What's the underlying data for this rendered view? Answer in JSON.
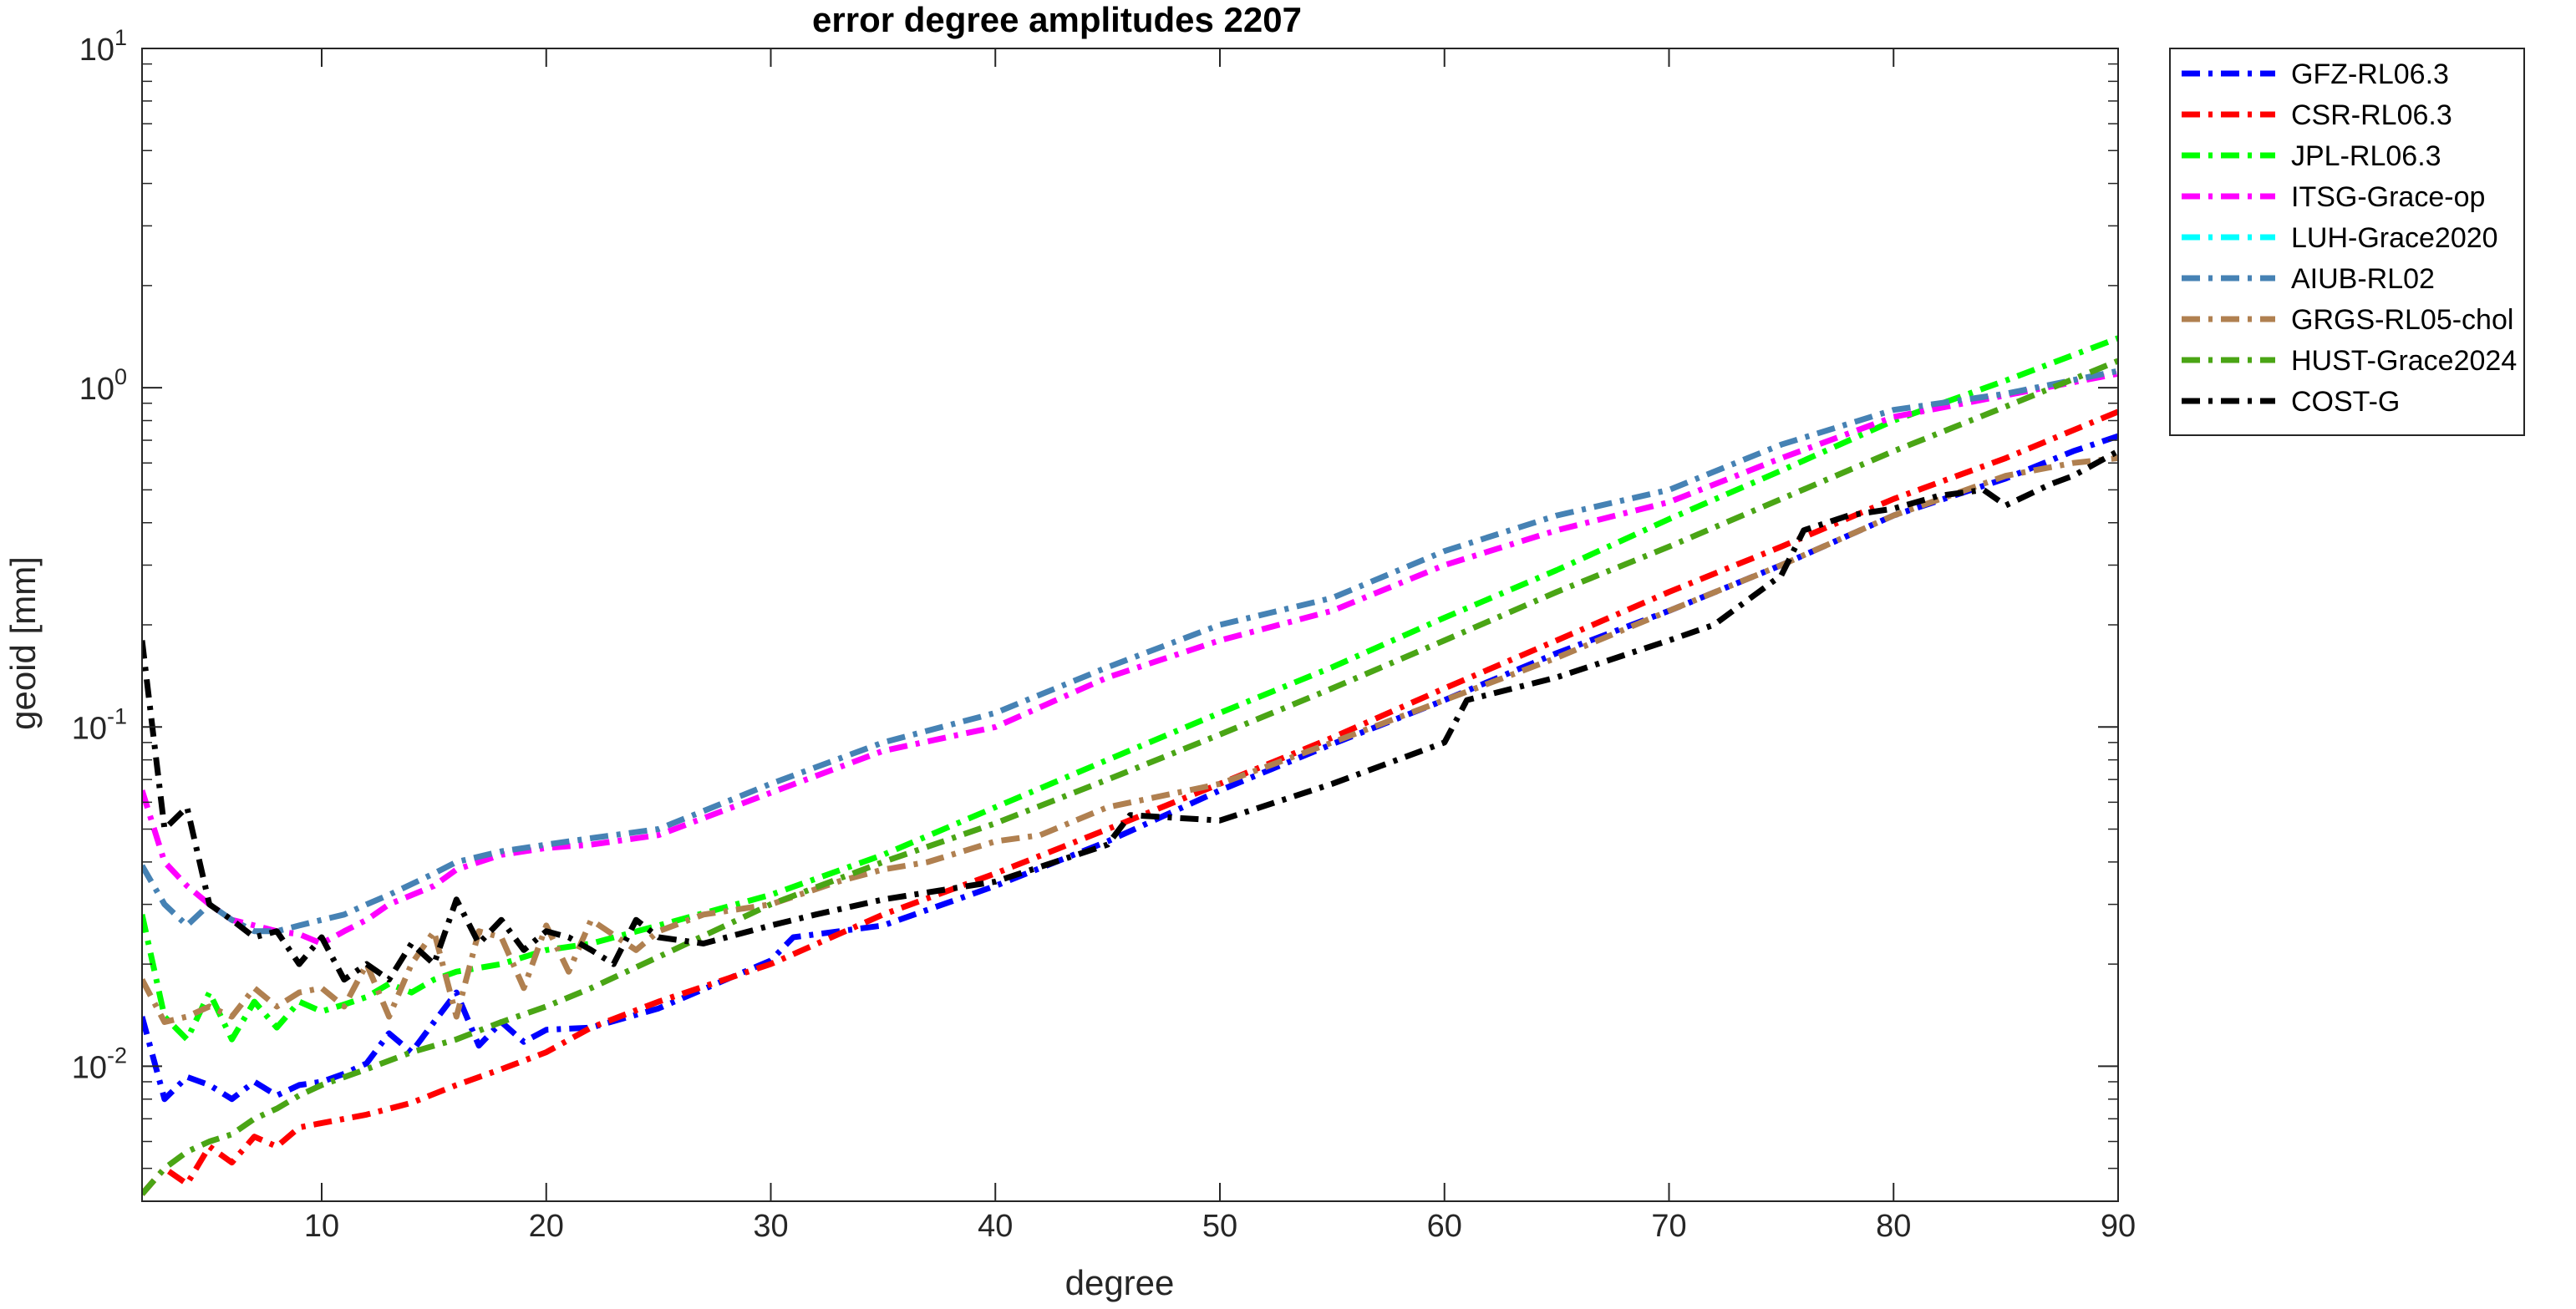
{
  "chart_data": {
    "type": "line",
    "title": "error degree amplitudes 2207",
    "xlabel": "degree",
    "ylabel": "geoid [mm]",
    "xlim": [
      2,
      90
    ],
    "ylim": [
      0.004,
      10
    ],
    "yscale": "log",
    "grid": false,
    "legend_position": "outside-top-right",
    "x_ticks": [
      10,
      20,
      30,
      40,
      50,
      60,
      70,
      80,
      90
    ],
    "y_ticks": [
      {
        "value": 10,
        "base": "10",
        "exp": "1"
      },
      {
        "value": 1,
        "base": "10",
        "exp": "0"
      },
      {
        "value": 0.1,
        "base": "10",
        "exp": "-1"
      },
      {
        "value": 0.01,
        "base": "10",
        "exp": "-2"
      }
    ],
    "series": [
      {
        "name": "GFZ-RL06.3",
        "color": "#0000ff",
        "dash": "dashdot",
        "points": [
          [
            2,
            0.014
          ],
          [
            3,
            0.008
          ],
          [
            4,
            0.0093
          ],
          [
            5,
            0.0088
          ],
          [
            6,
            0.008
          ],
          [
            7,
            0.009
          ],
          [
            8,
            0.0082
          ],
          [
            9,
            0.0088
          ],
          [
            10,
            0.009
          ],
          [
            11,
            0.0095
          ],
          [
            12,
            0.0102
          ],
          [
            13,
            0.0125
          ],
          [
            14,
            0.011
          ],
          [
            15,
            0.0135
          ],
          [
            16,
            0.0165
          ],
          [
            17,
            0.0115
          ],
          [
            18,
            0.0135
          ],
          [
            19,
            0.0118
          ],
          [
            20,
            0.0128
          ],
          [
            22,
            0.013
          ],
          [
            25,
            0.0148
          ],
          [
            30,
            0.0205
          ],
          [
            31,
            0.024
          ],
          [
            35,
            0.026
          ],
          [
            40,
            0.034
          ],
          [
            45,
            0.046
          ],
          [
            50,
            0.065
          ],
          [
            55,
            0.089
          ],
          [
            60,
            0.12
          ],
          [
            65,
            0.165
          ],
          [
            70,
            0.22
          ],
          [
            75,
            0.3
          ],
          [
            80,
            0.42
          ],
          [
            85,
            0.54
          ],
          [
            88,
            0.65
          ],
          [
            90,
            0.72
          ]
        ]
      },
      {
        "name": "CSR-RL06.3",
        "color": "#ff0000",
        "dash": "dashdot",
        "points": [
          [
            2,
            0.0042
          ],
          [
            3,
            0.005
          ],
          [
            4,
            0.0045
          ],
          [
            5,
            0.0058
          ],
          [
            6,
            0.0052
          ],
          [
            7,
            0.0062
          ],
          [
            8,
            0.0058
          ],
          [
            9,
            0.0066
          ],
          [
            10,
            0.0068
          ],
          [
            12,
            0.0072
          ],
          [
            14,
            0.0078
          ],
          [
            16,
            0.0088
          ],
          [
            18,
            0.0098
          ],
          [
            20,
            0.011
          ],
          [
            22,
            0.013
          ],
          [
            25,
            0.0155
          ],
          [
            30,
            0.02
          ],
          [
            35,
            0.028
          ],
          [
            40,
            0.037
          ],
          [
            45,
            0.05
          ],
          [
            50,
            0.068
          ],
          [
            55,
            0.093
          ],
          [
            60,
            0.13
          ],
          [
            65,
            0.18
          ],
          [
            70,
            0.25
          ],
          [
            75,
            0.34
          ],
          [
            80,
            0.47
          ],
          [
            85,
            0.62
          ],
          [
            90,
            0.85
          ]
        ]
      },
      {
        "name": "JPL-RL06.3",
        "color": "#00ff00",
        "dash": "dashdot",
        "points": [
          [
            2,
            0.028
          ],
          [
            3,
            0.014
          ],
          [
            4,
            0.012
          ],
          [
            5,
            0.0165
          ],
          [
            6,
            0.012
          ],
          [
            7,
            0.0155
          ],
          [
            8,
            0.013
          ],
          [
            9,
            0.0155
          ],
          [
            10,
            0.0145
          ],
          [
            11,
            0.0152
          ],
          [
            12,
            0.016
          ],
          [
            13,
            0.0175
          ],
          [
            14,
            0.0165
          ],
          [
            15,
            0.018
          ],
          [
            16,
            0.019
          ],
          [
            18,
            0.02
          ],
          [
            20,
            0.022
          ],
          [
            22,
            0.023
          ],
          [
            25,
            0.026
          ],
          [
            30,
            0.032
          ],
          [
            35,
            0.042
          ],
          [
            40,
            0.058
          ],
          [
            45,
            0.08
          ],
          [
            50,
            0.11
          ],
          [
            55,
            0.15
          ],
          [
            60,
            0.21
          ],
          [
            65,
            0.29
          ],
          [
            70,
            0.41
          ],
          [
            75,
            0.57
          ],
          [
            80,
            0.8
          ],
          [
            85,
            1.05
          ],
          [
            90,
            1.4
          ]
        ]
      },
      {
        "name": "ITSG-Grace-op",
        "color": "#ff00ff",
        "dash": "dashdot",
        "points": [
          [
            2,
            0.065
          ],
          [
            3,
            0.04
          ],
          [
            4,
            0.034
          ],
          [
            5,
            0.03
          ],
          [
            6,
            0.027
          ],
          [
            7,
            0.026
          ],
          [
            8,
            0.025
          ],
          [
            9,
            0.0245
          ],
          [
            10,
            0.023
          ],
          [
            11,
            0.025
          ],
          [
            12,
            0.027
          ],
          [
            13,
            0.03
          ],
          [
            15,
            0.034
          ],
          [
            16,
            0.038
          ],
          [
            18,
            0.042
          ],
          [
            20,
            0.044
          ],
          [
            22,
            0.045
          ],
          [
            25,
            0.048
          ],
          [
            30,
            0.064
          ],
          [
            35,
            0.085
          ],
          [
            40,
            0.1
          ],
          [
            45,
            0.14
          ],
          [
            50,
            0.18
          ],
          [
            55,
            0.22
          ],
          [
            60,
            0.3
          ],
          [
            65,
            0.38
          ],
          [
            70,
            0.46
          ],
          [
            75,
            0.62
          ],
          [
            80,
            0.82
          ],
          [
            85,
            0.95
          ],
          [
            90,
            1.1
          ]
        ]
      },
      {
        "name": "LUH-Grace2020",
        "color": "#00ffff",
        "dash": "dashdot",
        "points": []
      },
      {
        "name": "AIUB-RL02",
        "color": "#4682b4",
        "dash": "dashdot",
        "points": [
          [
            2,
            0.039
          ],
          [
            3,
            0.03
          ],
          [
            4,
            0.026
          ],
          [
            5,
            0.03
          ],
          [
            6,
            0.027
          ],
          [
            7,
            0.025
          ],
          [
            8,
            0.025
          ],
          [
            9,
            0.026
          ],
          [
            10,
            0.027
          ],
          [
            11,
            0.028
          ],
          [
            12,
            0.03
          ],
          [
            13,
            0.032
          ],
          [
            15,
            0.037
          ],
          [
            16,
            0.04
          ],
          [
            18,
            0.043
          ],
          [
            20,
            0.045
          ],
          [
            22,
            0.047
          ],
          [
            25,
            0.05
          ],
          [
            30,
            0.068
          ],
          [
            35,
            0.09
          ],
          [
            40,
            0.11
          ],
          [
            45,
            0.15
          ],
          [
            50,
            0.2
          ],
          [
            55,
            0.24
          ],
          [
            60,
            0.33
          ],
          [
            65,
            0.42
          ],
          [
            70,
            0.5
          ],
          [
            75,
            0.68
          ],
          [
            80,
            0.86
          ],
          [
            85,
            0.96
          ],
          [
            90,
            1.12
          ]
        ]
      },
      {
        "name": "GRGS-RL05-chol",
        "color": "#b08050",
        "dash": "dashdot",
        "points": [
          [
            2,
            0.018
          ],
          [
            3,
            0.0135
          ],
          [
            4,
            0.014
          ],
          [
            5,
            0.015
          ],
          [
            6,
            0.014
          ],
          [
            7,
            0.017
          ],
          [
            8,
            0.015
          ],
          [
            9,
            0.0165
          ],
          [
            10,
            0.017
          ],
          [
            11,
            0.015
          ],
          [
            12,
            0.02
          ],
          [
            13,
            0.014
          ],
          [
            14,
            0.02
          ],
          [
            15,
            0.025
          ],
          [
            16,
            0.014
          ],
          [
            17,
            0.025
          ],
          [
            18,
            0.024
          ],
          [
            19,
            0.017
          ],
          [
            20,
            0.026
          ],
          [
            21,
            0.019
          ],
          [
            22,
            0.027
          ],
          [
            24,
            0.022
          ],
          [
            25,
            0.025
          ],
          [
            27,
            0.028
          ],
          [
            30,
            0.03
          ],
          [
            33,
            0.035
          ],
          [
            35,
            0.038
          ],
          [
            37,
            0.04
          ],
          [
            40,
            0.046
          ],
          [
            42,
            0.048
          ],
          [
            45,
            0.058
          ],
          [
            50,
            0.068
          ],
          [
            55,
            0.09
          ],
          [
            60,
            0.12
          ],
          [
            65,
            0.16
          ],
          [
            70,
            0.22
          ],
          [
            75,
            0.3
          ],
          [
            80,
            0.42
          ],
          [
            85,
            0.55
          ],
          [
            88,
            0.6
          ],
          [
            90,
            0.62
          ]
        ]
      },
      {
        "name": "HUST-Grace2024",
        "color": "#4aa515",
        "dash": "dashdot",
        "points": [
          [
            2,
            0.0042
          ],
          [
            3,
            0.005
          ],
          [
            4,
            0.0056
          ],
          [
            5,
            0.006
          ],
          [
            6,
            0.0063
          ],
          [
            7,
            0.007
          ],
          [
            8,
            0.0075
          ],
          [
            9,
            0.0082
          ],
          [
            10,
            0.0088
          ],
          [
            12,
            0.0098
          ],
          [
            14,
            0.011
          ],
          [
            16,
            0.012
          ],
          [
            18,
            0.0135
          ],
          [
            20,
            0.015
          ],
          [
            22,
            0.017
          ],
          [
            25,
            0.021
          ],
          [
            30,
            0.03
          ],
          [
            35,
            0.04
          ],
          [
            40,
            0.052
          ],
          [
            45,
            0.07
          ],
          [
            50,
            0.095
          ],
          [
            55,
            0.13
          ],
          [
            60,
            0.18
          ],
          [
            65,
            0.25
          ],
          [
            70,
            0.34
          ],
          [
            75,
            0.47
          ],
          [
            80,
            0.65
          ],
          [
            85,
            0.88
          ],
          [
            90,
            1.2
          ]
        ]
      },
      {
        "name": "COST-G",
        "color": "#000000",
        "dash": "dashdot",
        "points": [
          [
            2,
            0.18
          ],
          [
            3,
            0.05
          ],
          [
            4,
            0.058
          ],
          [
            5,
            0.03
          ],
          [
            6,
            0.027
          ],
          [
            7,
            0.024
          ],
          [
            8,
            0.025
          ],
          [
            9,
            0.02
          ],
          [
            10,
            0.024
          ],
          [
            11,
            0.018
          ],
          [
            12,
            0.02
          ],
          [
            13,
            0.018
          ],
          [
            14,
            0.023
          ],
          [
            15,
            0.02
          ],
          [
            16,
            0.031
          ],
          [
            17,
            0.023
          ],
          [
            18,
            0.027
          ],
          [
            19,
            0.022
          ],
          [
            20,
            0.025
          ],
          [
            21,
            0.024
          ],
          [
            22,
            0.022
          ],
          [
            23,
            0.02
          ],
          [
            24,
            0.027
          ],
          [
            25,
            0.024
          ],
          [
            27,
            0.023
          ],
          [
            30,
            0.026
          ],
          [
            32,
            0.028
          ],
          [
            35,
            0.031
          ],
          [
            40,
            0.035
          ],
          [
            45,
            0.045
          ],
          [
            46,
            0.055
          ],
          [
            50,
            0.053
          ],
          [
            55,
            0.068
          ],
          [
            60,
            0.09
          ],
          [
            61,
            0.12
          ],
          [
            65,
            0.14
          ],
          [
            70,
            0.18
          ],
          [
            72,
            0.2
          ],
          [
            75,
            0.28
          ],
          [
            76,
            0.38
          ],
          [
            78,
            0.42
          ],
          [
            80,
            0.44
          ],
          [
            82,
            0.48
          ],
          [
            84,
            0.5
          ],
          [
            85,
            0.45
          ],
          [
            87,
            0.52
          ],
          [
            88,
            0.55
          ],
          [
            90,
            0.65
          ]
        ]
      }
    ]
  }
}
